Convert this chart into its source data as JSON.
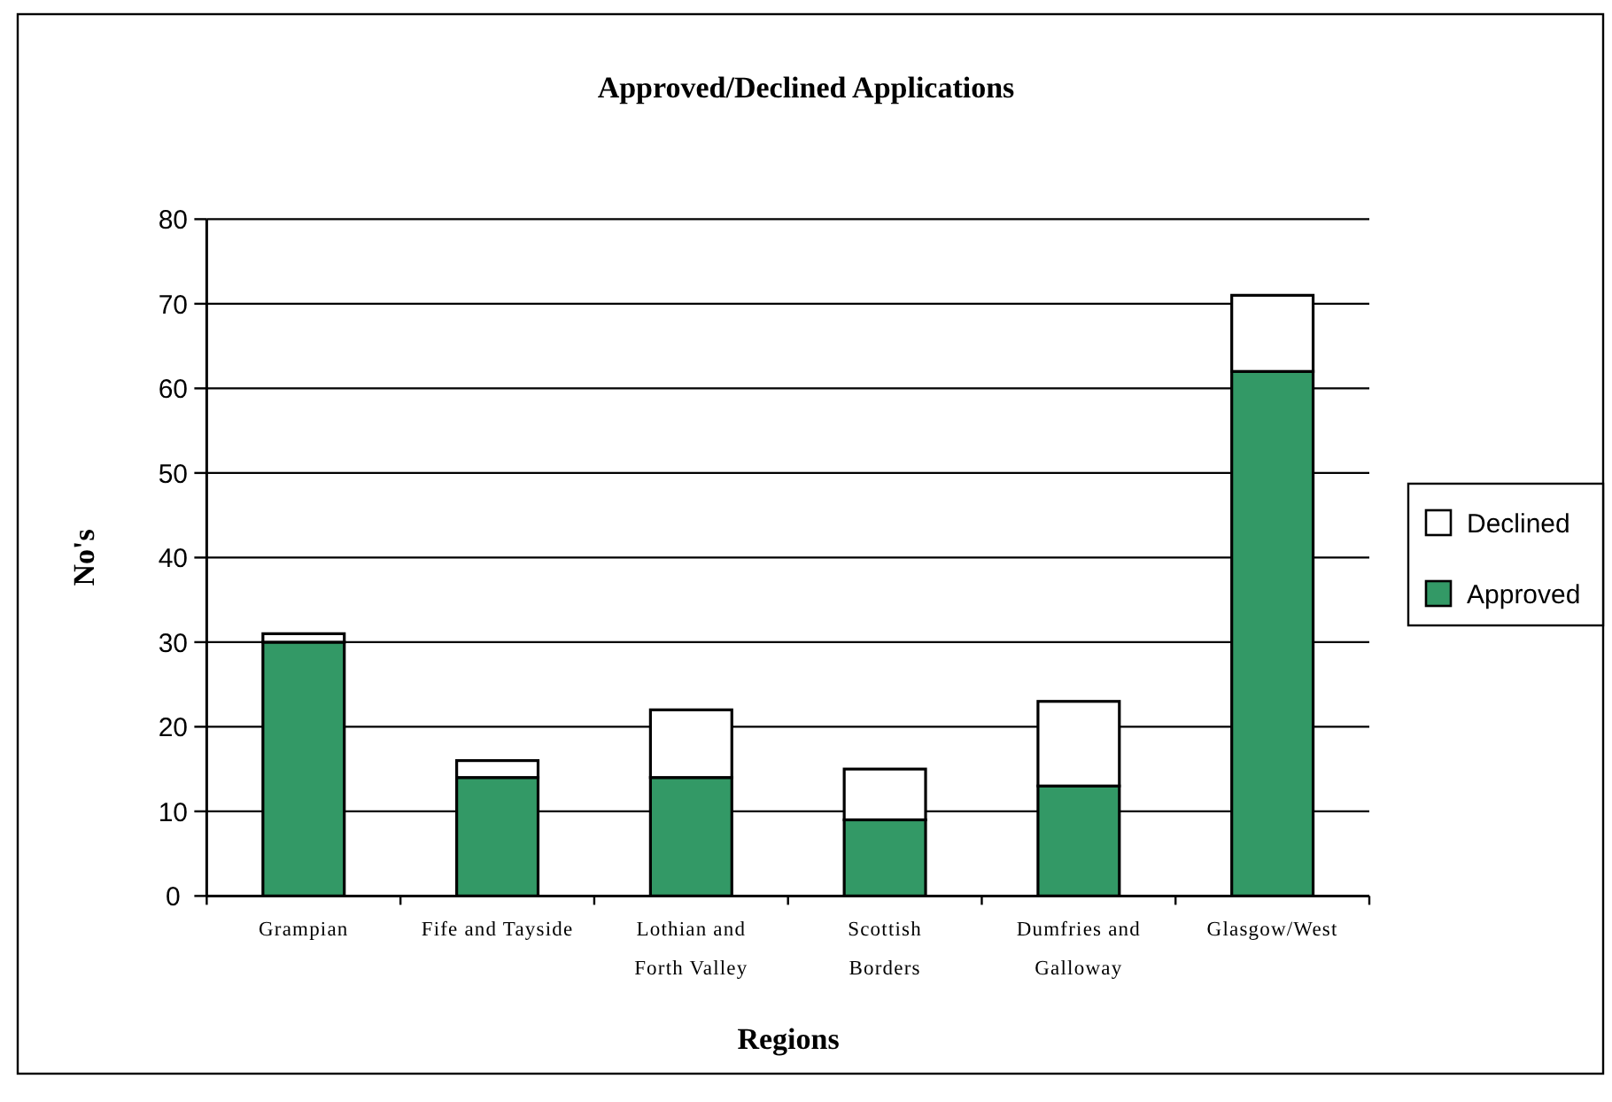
{
  "chart_data": {
    "type": "bar",
    "title": "Approved/Declined Applications",
    "xlabel": "Regions",
    "ylabel": "No's",
    "categories": [
      "Grampian",
      "Fife and Tayside",
      "Lothian and\nForth Valley",
      "Scottish\nBorders",
      "Dumfries and\nGalloway",
      "Glasgow/West"
    ],
    "series": [
      {
        "name": "Approved",
        "color": "#339966",
        "values": [
          30,
          14,
          14,
          9,
          13,
          62
        ]
      },
      {
        "name": "Declined",
        "color": "#ffffff",
        "values": [
          1,
          2,
          8,
          6,
          10,
          9
        ]
      }
    ],
    "stacked": true,
    "ylim": [
      0,
      80
    ],
    "yticks": [
      0,
      10,
      20,
      30,
      40,
      50,
      60,
      70,
      80
    ],
    "grid": "y",
    "legend": "right"
  }
}
